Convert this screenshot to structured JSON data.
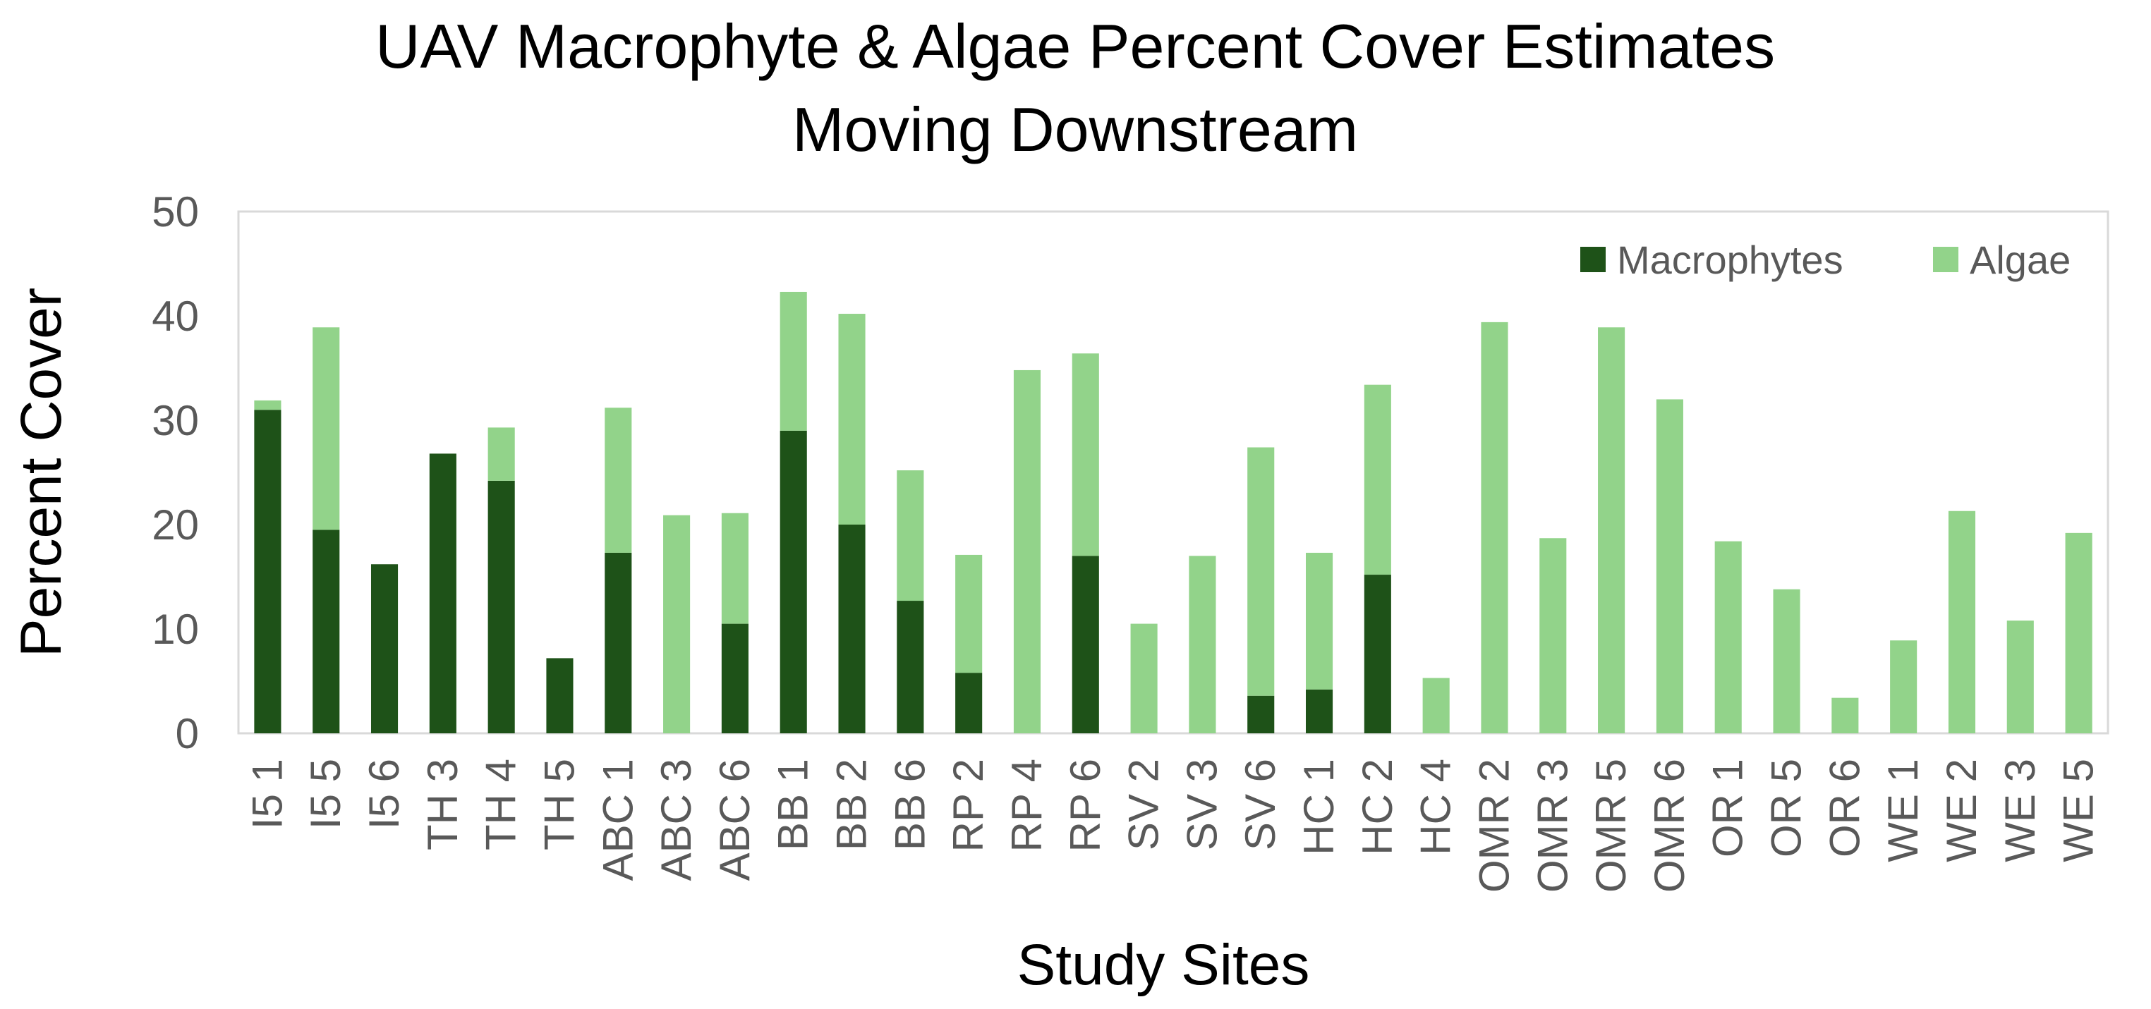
{
  "chart_data": {
    "type": "bar",
    "stacked": true,
    "title": [
      "UAV Macrophyte & Algae Percent Cover Estimates",
      "Moving Downstream"
    ],
    "xlabel": "Study Sites",
    "ylabel": "Percent Cover",
    "ylim": [
      0,
      50
    ],
    "yticks": [
      "0",
      "10",
      "20",
      "30",
      "40",
      "50"
    ],
    "grid": false,
    "legend_position": "top-right",
    "categories": [
      "I5 1",
      "I5 5",
      "I5 6",
      "TH 3",
      "TH 4",
      "TH 5",
      "ABC 1",
      "ABC 3",
      "ABC 6",
      "BB 1",
      "BB 2",
      "BB 6",
      "RP 2",
      "RP 4",
      "RP 6",
      "SV 2",
      "SV 3",
      "SV 6",
      "HC 1",
      "HC 2",
      "HC 4",
      "OMR 2",
      "OMR 3",
      "OMR 5",
      "OMR 6",
      "OR 1",
      "OR 5",
      "OR 6",
      "WE 1",
      "WE 2",
      "WE 3",
      "WE 5"
    ],
    "series": [
      {
        "name": "Macrophytes",
        "color": "#1e5218",
        "values": [
          31,
          19.5,
          16.2,
          26.8,
          24.2,
          7.2,
          17.3,
          0,
          10.5,
          29,
          20,
          12.7,
          5.8,
          0,
          17,
          0,
          0,
          3.6,
          4.2,
          15.2,
          0,
          0,
          0,
          0,
          0,
          0,
          0,
          0,
          0,
          0,
          0,
          0
        ]
      },
      {
        "name": "Algae",
        "color": "#92d38a",
        "values": [
          0.9,
          19.4,
          0,
          0,
          5.1,
          0,
          13.9,
          20.9,
          10.6,
          13.3,
          20.2,
          12.5,
          11.3,
          34.8,
          19.4,
          10.5,
          17,
          23.8,
          13.1,
          18.2,
          5.3,
          39.4,
          18.7,
          38.9,
          32,
          18.4,
          13.8,
          3.4,
          8.9,
          21.3,
          10.8,
          19.2
        ]
      }
    ]
  }
}
